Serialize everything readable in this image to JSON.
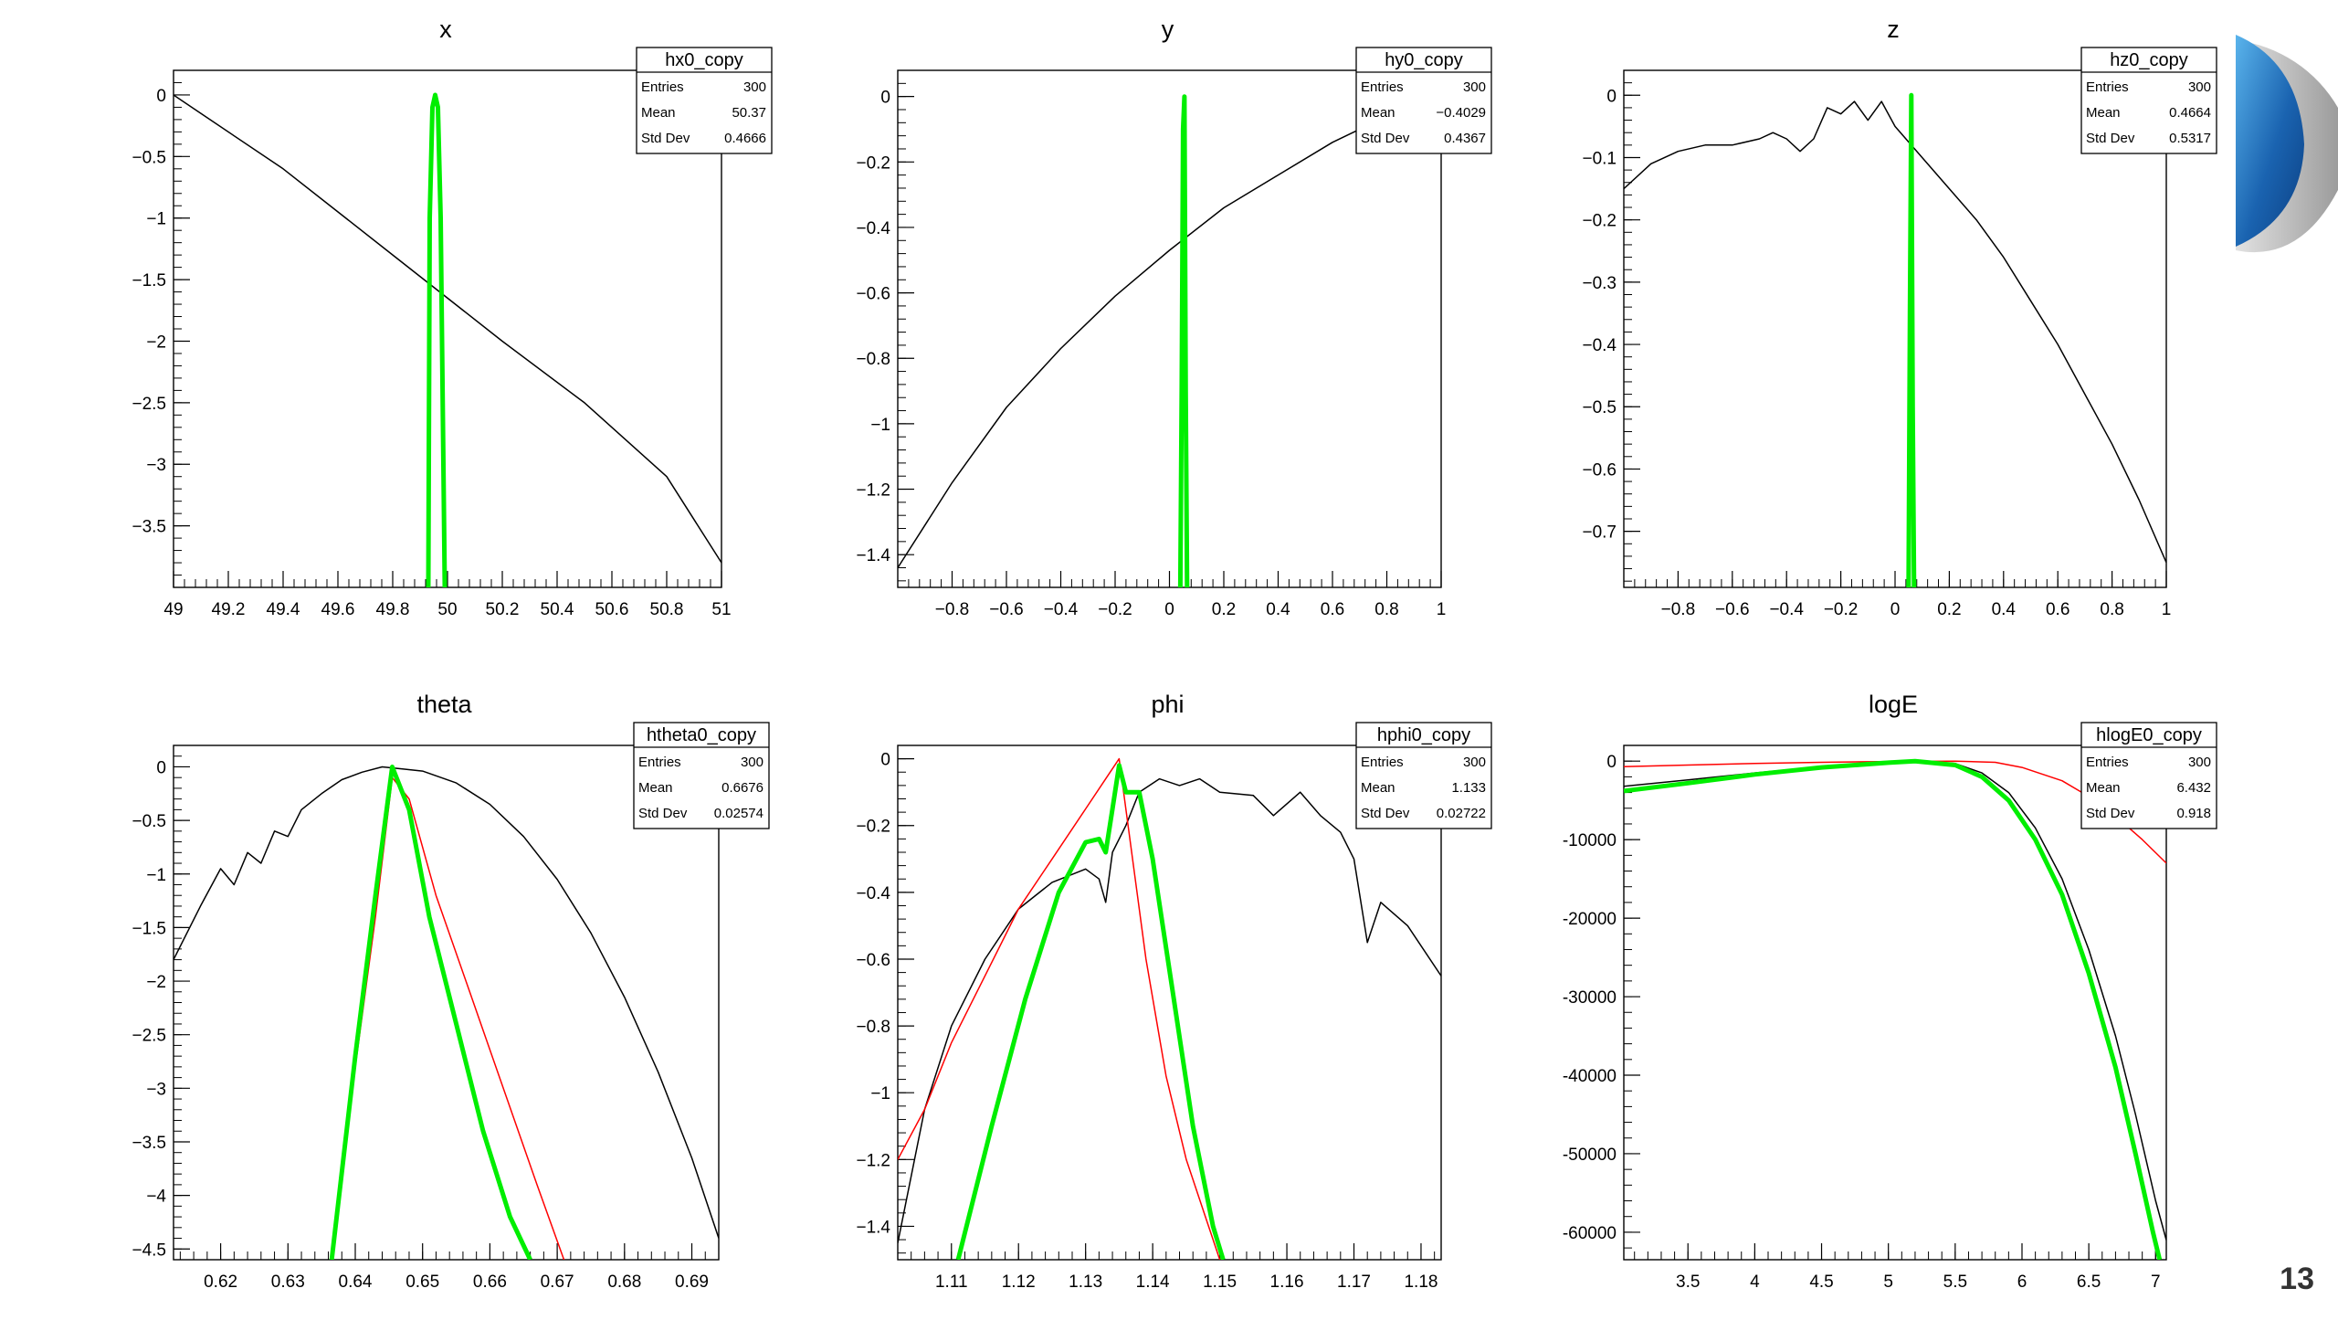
{
  "slide": {
    "number": "13"
  },
  "chart_data": [
    {
      "type": "line",
      "title": "x",
      "stats": {
        "name": "hx0_copy",
        "entries": "300",
        "mean": "50.37",
        "std_dev": "0.4666"
      },
      "xlim": [
        49,
        51
      ],
      "ylim": [
        -4.0,
        0.2
      ],
      "xticks": [
        49,
        49.2,
        49.4,
        49.6,
        49.8,
        50,
        50.2,
        50.4,
        50.6,
        50.8,
        51
      ],
      "xtick_labels": [
        "49",
        "49.2",
        "49.4",
        "49.6",
        "49.8",
        "50",
        "50.2",
        "50.4",
        "50.6",
        "50.8",
        "51"
      ],
      "yticks": [
        0,
        -0.5,
        -1,
        -1.5,
        -2,
        -2.5,
        -3,
        -3.5
      ],
      "ytick_labels": [
        "0",
        "−0.5",
        "−1",
        "−1.5",
        "−2",
        "−2.5",
        "−3",
        "−3.5"
      ],
      "series": [
        {
          "color": "#000000",
          "width": 1.5,
          "x": [
            49,
            49.4,
            49.8,
            50.2,
            50.5,
            50.8,
            51
          ],
          "y": [
            0,
            -0.6,
            -1.3,
            -2.0,
            -2.5,
            -3.1,
            -3.8
          ]
        },
        {
          "color": "#00ee00",
          "width": 5,
          "x": [
            49.93,
            49.935,
            49.945,
            49.955,
            49.965,
            49.975,
            49.985,
            49.99
          ],
          "y": [
            -4.0,
            -1.0,
            -0.1,
            0,
            -0.1,
            -1.0,
            -3.0,
            -4.0
          ]
        }
      ]
    },
    {
      "type": "line",
      "title": "y",
      "stats": {
        "name": "hy0_copy",
        "entries": "300",
        "mean": "−0.4029",
        "std_dev": "0.4367"
      },
      "xlim": [
        -1,
        1
      ],
      "ylim": [
        -1.5,
        0.08
      ],
      "xticks": [
        -0.8,
        -0.6,
        -0.4,
        -0.2,
        0,
        0.2,
        0.4,
        0.6,
        0.8,
        1
      ],
      "xtick_labels": [
        "−0.8",
        "−0.6",
        "−0.4",
        "−0.2",
        "0",
        "0.2",
        "0.4",
        "0.6",
        "0.8",
        "1"
      ],
      "yticks": [
        0,
        -0.2,
        -0.4,
        -0.6,
        -0.8,
        -1,
        -1.2,
        -1.4
      ],
      "ytick_labels": [
        "0",
        "−0.2",
        "−0.4",
        "−0.6",
        "−0.8",
        "−1",
        "−1.2",
        "−1.4"
      ],
      "series": [
        {
          "color": "#000000",
          "width": 1.5,
          "x": [
            -1,
            -0.8,
            -0.6,
            -0.4,
            -0.2,
            0,
            0.2,
            0.4,
            0.6,
            0.8,
            1
          ],
          "y": [
            -1.44,
            -1.18,
            -0.95,
            -0.77,
            -0.61,
            -0.47,
            -0.34,
            -0.24,
            -0.14,
            -0.06,
            0.01
          ]
        },
        {
          "color": "#00ee00",
          "width": 5,
          "x": [
            0.04,
            0.045,
            0.05,
            0.055,
            0.06,
            0.065
          ],
          "y": [
            -1.5,
            -0.9,
            -0.1,
            0,
            -0.9,
            -1.5
          ]
        }
      ]
    },
    {
      "type": "line",
      "title": "z",
      "stats": {
        "name": "hz0_copy",
        "entries": "300",
        "mean": "0.4664",
        "std_dev": "0.5317"
      },
      "xlim": [
        -1,
        1
      ],
      "ylim": [
        -0.79,
        0.04
      ],
      "xticks": [
        -0.8,
        -0.6,
        -0.4,
        -0.2,
        0,
        0.2,
        0.4,
        0.6,
        0.8,
        1
      ],
      "xtick_labels": [
        "−0.8",
        "−0.6",
        "−0.4",
        "−0.2",
        "0",
        "0.2",
        "0.4",
        "0.6",
        "0.8",
        "1"
      ],
      "yticks": [
        0,
        -0.1,
        -0.2,
        -0.3,
        -0.4,
        -0.5,
        -0.6,
        -0.7
      ],
      "ytick_labels": [
        "0",
        "−0.1",
        "−0.2",
        "−0.3",
        "−0.4",
        "−0.5",
        "−0.6",
        "−0.7"
      ],
      "series": [
        {
          "color": "#000000",
          "width": 1.5,
          "x": [
            -1,
            -0.9,
            -0.8,
            -0.7,
            -0.6,
            -0.5,
            -0.45,
            -0.4,
            -0.35,
            -0.3,
            -0.25,
            -0.2,
            -0.15,
            -0.1,
            -0.05,
            0,
            0.1,
            0.2,
            0.3,
            0.4,
            0.5,
            0.6,
            0.7,
            0.8,
            0.9,
            1
          ],
          "y": [
            -0.15,
            -0.11,
            -0.09,
            -0.08,
            -0.08,
            -0.07,
            -0.06,
            -0.07,
            -0.09,
            -0.07,
            -0.02,
            -0.03,
            -0.01,
            -0.04,
            -0.01,
            -0.05,
            -0.1,
            -0.15,
            -0.2,
            -0.26,
            -0.33,
            -0.4,
            -0.48,
            -0.56,
            -0.65,
            -0.75
          ]
        },
        {
          "color": "#00ee00",
          "width": 5,
          "x": [
            0.05,
            0.055,
            0.06,
            0.065,
            0.07
          ],
          "y": [
            -0.79,
            -0.35,
            0,
            -0.5,
            -0.79
          ]
        }
      ]
    },
    {
      "type": "line",
      "title": "theta",
      "stats": {
        "name": "htheta0_copy",
        "entries": "300",
        "mean": "0.6676",
        "std_dev": "0.02574"
      },
      "xlim": [
        0.613,
        0.694
      ],
      "ylim": [
        -4.6,
        0.2
      ],
      "xticks": [
        0.62,
        0.63,
        0.64,
        0.65,
        0.66,
        0.67,
        0.68,
        0.69
      ],
      "xtick_labels": [
        "0.62",
        "0.63",
        "0.64",
        "0.65",
        "0.66",
        "0.67",
        "0.68",
        "0.69"
      ],
      "yticks": [
        0,
        -0.5,
        -1,
        -1.5,
        -2,
        -2.5,
        -3,
        -3.5,
        -4,
        -4.5
      ],
      "ytick_labels": [
        "0",
        "−0.5",
        "−1",
        "−1.5",
        "−2",
        "−2.5",
        "−3",
        "−3.5",
        "−4",
        "−4.5"
      ],
      "series": [
        {
          "color": "#000000",
          "width": 1.5,
          "x": [
            0.613,
            0.617,
            0.62,
            0.622,
            0.624,
            0.626,
            0.628,
            0.63,
            0.632,
            0.635,
            0.638,
            0.641,
            0.644,
            0.647,
            0.65,
            0.655,
            0.66,
            0.665,
            0.67,
            0.675,
            0.68,
            0.685,
            0.69,
            0.694
          ],
          "y": [
            -1.8,
            -1.3,
            -0.95,
            -1.1,
            -0.8,
            -0.9,
            -0.6,
            -0.65,
            -0.4,
            -0.25,
            -0.12,
            -0.05,
            0,
            -0.02,
            -0.04,
            -0.15,
            -0.35,
            -0.65,
            -1.05,
            -1.55,
            -2.15,
            -2.85,
            -3.65,
            -4.4
          ]
        },
        {
          "color": "#ff0000",
          "width": 1.5,
          "x": [
            0.6365,
            0.64,
            0.643,
            0.6455,
            0.648,
            0.652,
            0.657,
            0.662,
            0.667,
            0.671
          ],
          "y": [
            -4.6,
            -2.8,
            -1.4,
            -0.1,
            -0.3,
            -1.2,
            -2.1,
            -3.0,
            -3.9,
            -4.6
          ]
        },
        {
          "color": "#00ee00",
          "width": 5,
          "x": [
            0.6365,
            0.64,
            0.643,
            0.6455,
            0.648,
            0.651,
            0.655,
            0.659,
            0.663,
            0.666
          ],
          "y": [
            -4.6,
            -2.7,
            -1.2,
            0,
            -0.4,
            -1.4,
            -2.4,
            -3.4,
            -4.2,
            -4.6
          ]
        }
      ]
    },
    {
      "type": "line",
      "title": "phi",
      "stats": {
        "name": "hphi0_copy",
        "entries": "300",
        "mean": "1.133",
        "std_dev": "0.02722"
      },
      "xlim": [
        1.102,
        1.183
      ],
      "ylim": [
        -1.5,
        0.04
      ],
      "xticks": [
        1.11,
        1.12,
        1.13,
        1.14,
        1.15,
        1.16,
        1.17,
        1.18
      ],
      "xtick_labels": [
        "1.11",
        "1.12",
        "1.13",
        "1.14",
        "1.15",
        "1.16",
        "1.17",
        "1.18"
      ],
      "yticks": [
        0,
        -0.2,
        -0.4,
        -0.6,
        -0.8,
        -1,
        -1.2,
        -1.4
      ],
      "ytick_labels": [
        "0",
        "−0.2",
        "−0.4",
        "−0.6",
        "−0.8",
        "−1",
        "−1.2",
        "−1.4"
      ],
      "series": [
        {
          "color": "#000000",
          "width": 1.5,
          "x": [
            1.102,
            1.106,
            1.11,
            1.115,
            1.12,
            1.125,
            1.13,
            1.132,
            1.133,
            1.134,
            1.136,
            1.138,
            1.141,
            1.144,
            1.147,
            1.15,
            1.155,
            1.158,
            1.162,
            1.165,
            1.168,
            1.17,
            1.172,
            1.174,
            1.178,
            1.183
          ],
          "y": [
            -1.45,
            -1.05,
            -0.8,
            -0.6,
            -0.45,
            -0.37,
            -0.33,
            -0.36,
            -0.43,
            -0.28,
            -0.2,
            -0.1,
            -0.06,
            -0.08,
            -0.06,
            -0.1,
            -0.11,
            -0.17,
            -0.1,
            -0.17,
            -0.22,
            -0.3,
            -0.55,
            -0.43,
            -0.5,
            -0.65
          ]
        },
        {
          "color": "#ff0000",
          "width": 1.5,
          "x": [
            1.102,
            1.106,
            1.11,
            1.115,
            1.12,
            1.125,
            1.13,
            1.133,
            1.135,
            1.137,
            1.139,
            1.142,
            1.145,
            1.148,
            1.15
          ],
          "y": [
            -1.2,
            -1.05,
            -0.85,
            -0.65,
            -0.45,
            -0.3,
            -0.15,
            -0.06,
            0,
            -0.3,
            -0.6,
            -0.95,
            -1.2,
            -1.38,
            -1.5
          ]
        },
        {
          "color": "#00ee00",
          "width": 5,
          "x": [
            1.111,
            1.116,
            1.121,
            1.126,
            1.13,
            1.132,
            1.133,
            1.134,
            1.135,
            1.136,
            1.138,
            1.14,
            1.143,
            1.146,
            1.149,
            1.1505
          ],
          "y": [
            -1.5,
            -1.1,
            -0.72,
            -0.4,
            -0.25,
            -0.24,
            -0.28,
            -0.15,
            -0.02,
            -0.1,
            -0.1,
            -0.3,
            -0.7,
            -1.1,
            -1.4,
            -1.5
          ]
        }
      ]
    },
    {
      "type": "line",
      "title": "logE",
      "stats": {
        "name": "hlogE0_copy",
        "entries": "300",
        "mean": "6.432",
        "std_dev": "0.918"
      },
      "xlim": [
        3.02,
        7.08
      ],
      "ylim": [
        -63500,
        2000
      ],
      "xticks": [
        3.5,
        4,
        4.5,
        5,
        5.5,
        6,
        6.5,
        7
      ],
      "xtick_labels": [
        "3.5",
        "4",
        "4.5",
        "5",
        "5.5",
        "6",
        "6.5",
        "7"
      ],
      "yticks": [
        0,
        -10000,
        -20000,
        -30000,
        -40000,
        -50000,
        -60000
      ],
      "ytick_labels": [
        "0",
        "-10000",
        "-20000",
        "-30000",
        "-40000",
        "-50000",
        "-60000"
      ],
      "series": [
        {
          "color": "#ff0000",
          "width": 1.5,
          "x": [
            3.02,
            3.5,
            4,
            4.5,
            5,
            5.5,
            5.8,
            6,
            6.3,
            6.5,
            6.7,
            6.9,
            7.08
          ],
          "y": [
            -700,
            -500,
            -300,
            -150,
            -50,
            0,
            -150,
            -800,
            -2500,
            -4500,
            -7000,
            -10000,
            -13000
          ]
        },
        {
          "color": "#000000",
          "width": 1.5,
          "x": [
            3.02,
            3.5,
            4,
            4.5,
            5,
            5.2,
            5.5,
            5.7,
            5.9,
            6.1,
            6.3,
            6.5,
            6.7,
            6.85,
            7,
            7.08
          ],
          "y": [
            -3200,
            -2400,
            -1500,
            -700,
            -150,
            0,
            -300,
            -1500,
            -4000,
            -8500,
            -15000,
            -24000,
            -35000,
            -45000,
            -56000,
            -61000
          ]
        },
        {
          "color": "#00ee00",
          "width": 5,
          "x": [
            3.02,
            3.5,
            4,
            4.5,
            5,
            5.2,
            5.5,
            5.7,
            5.9,
            6.1,
            6.3,
            6.5,
            6.7,
            6.85,
            6.98,
            7.03
          ],
          "y": [
            -3800,
            -2800,
            -1700,
            -800,
            -200,
            0,
            -500,
            -2000,
            -5000,
            -10000,
            -17000,
            -27000,
            -39000,
            -50000,
            -60000,
            -63500
          ]
        }
      ]
    }
  ]
}
